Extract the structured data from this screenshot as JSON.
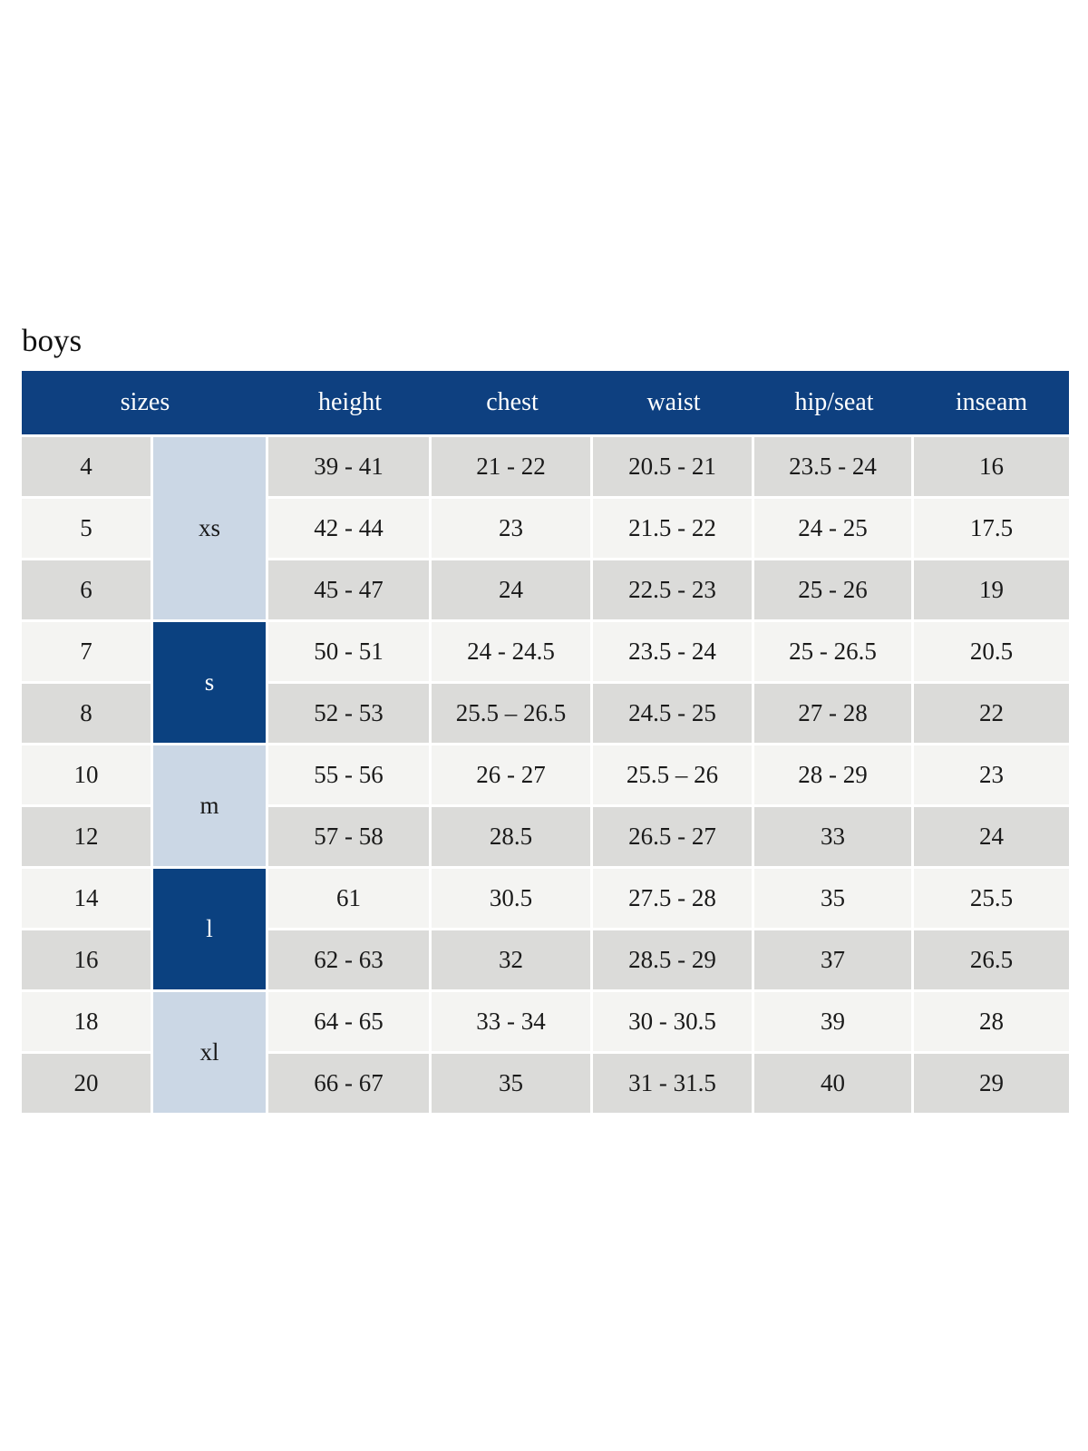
{
  "page": {
    "title": "boys"
  },
  "colors": {
    "header_bg": "#0e4080",
    "header_text": "#ffffff",
    "group_dark": "#0b4180",
    "group_light": "#cbd7e5",
    "row_dark": "#dbdbd9",
    "row_light": "#f4f4f2",
    "cell_text": "#1a1a1a"
  },
  "table": {
    "headers": [
      "sizes",
      "height",
      "chest",
      "waist",
      "hip/seat",
      "inseam"
    ],
    "size_groups": [
      {
        "label": "xs",
        "rows": 3,
        "style": "light"
      },
      {
        "label": "s",
        "rows": 2,
        "style": "dark"
      },
      {
        "label": "m",
        "rows": 2,
        "style": "light"
      },
      {
        "label": "l",
        "rows": 2,
        "style": "dark"
      },
      {
        "label": "xl",
        "rows": 2,
        "style": "light"
      }
    ],
    "rows": [
      {
        "size": "4",
        "height": "39 - 41",
        "chest": "21 - 22",
        "waist": "20.5 - 21",
        "hip_seat": "23.5 - 24",
        "inseam": "16"
      },
      {
        "size": "5",
        "height": "42 - 44",
        "chest": "23",
        "waist": "21.5 - 22",
        "hip_seat": "24 - 25",
        "inseam": "17.5"
      },
      {
        "size": "6",
        "height": "45 - 47",
        "chest": "24",
        "waist": "22.5 - 23",
        "hip_seat": "25 - 26",
        "inseam": "19"
      },
      {
        "size": "7",
        "height": "50 - 51",
        "chest": "24 - 24.5",
        "waist": "23.5 - 24",
        "hip_seat": "25 - 26.5",
        "inseam": "20.5"
      },
      {
        "size": "8",
        "height": "52 - 53",
        "chest": "25.5 – 26.5",
        "waist": "24.5 - 25",
        "hip_seat": "27 - 28",
        "inseam": "22"
      },
      {
        "size": "10",
        "height": "55 - 56",
        "chest": "26 - 27",
        "waist": "25.5 – 26",
        "hip_seat": "28 - 29",
        "inseam": "23"
      },
      {
        "size": "12",
        "height": "57 - 58",
        "chest": "28.5",
        "waist": "26.5 - 27",
        "hip_seat": "33",
        "inseam": "24"
      },
      {
        "size": "14",
        "height": "61",
        "chest": "30.5",
        "waist": "27.5 - 28",
        "hip_seat": "35",
        "inseam": "25.5"
      },
      {
        "size": "16",
        "height": "62 - 63",
        "chest": "32",
        "waist": "28.5 - 29",
        "hip_seat": "37",
        "inseam": "26.5"
      },
      {
        "size": "18",
        "height": "64 - 65",
        "chest": "33 - 34",
        "waist": "30 - 30.5",
        "hip_seat": "39",
        "inseam": "28"
      },
      {
        "size": "20",
        "height": "66 - 67",
        "chest": "35",
        "waist": "31 - 31.5",
        "hip_seat": "40",
        "inseam": "29"
      }
    ]
  }
}
